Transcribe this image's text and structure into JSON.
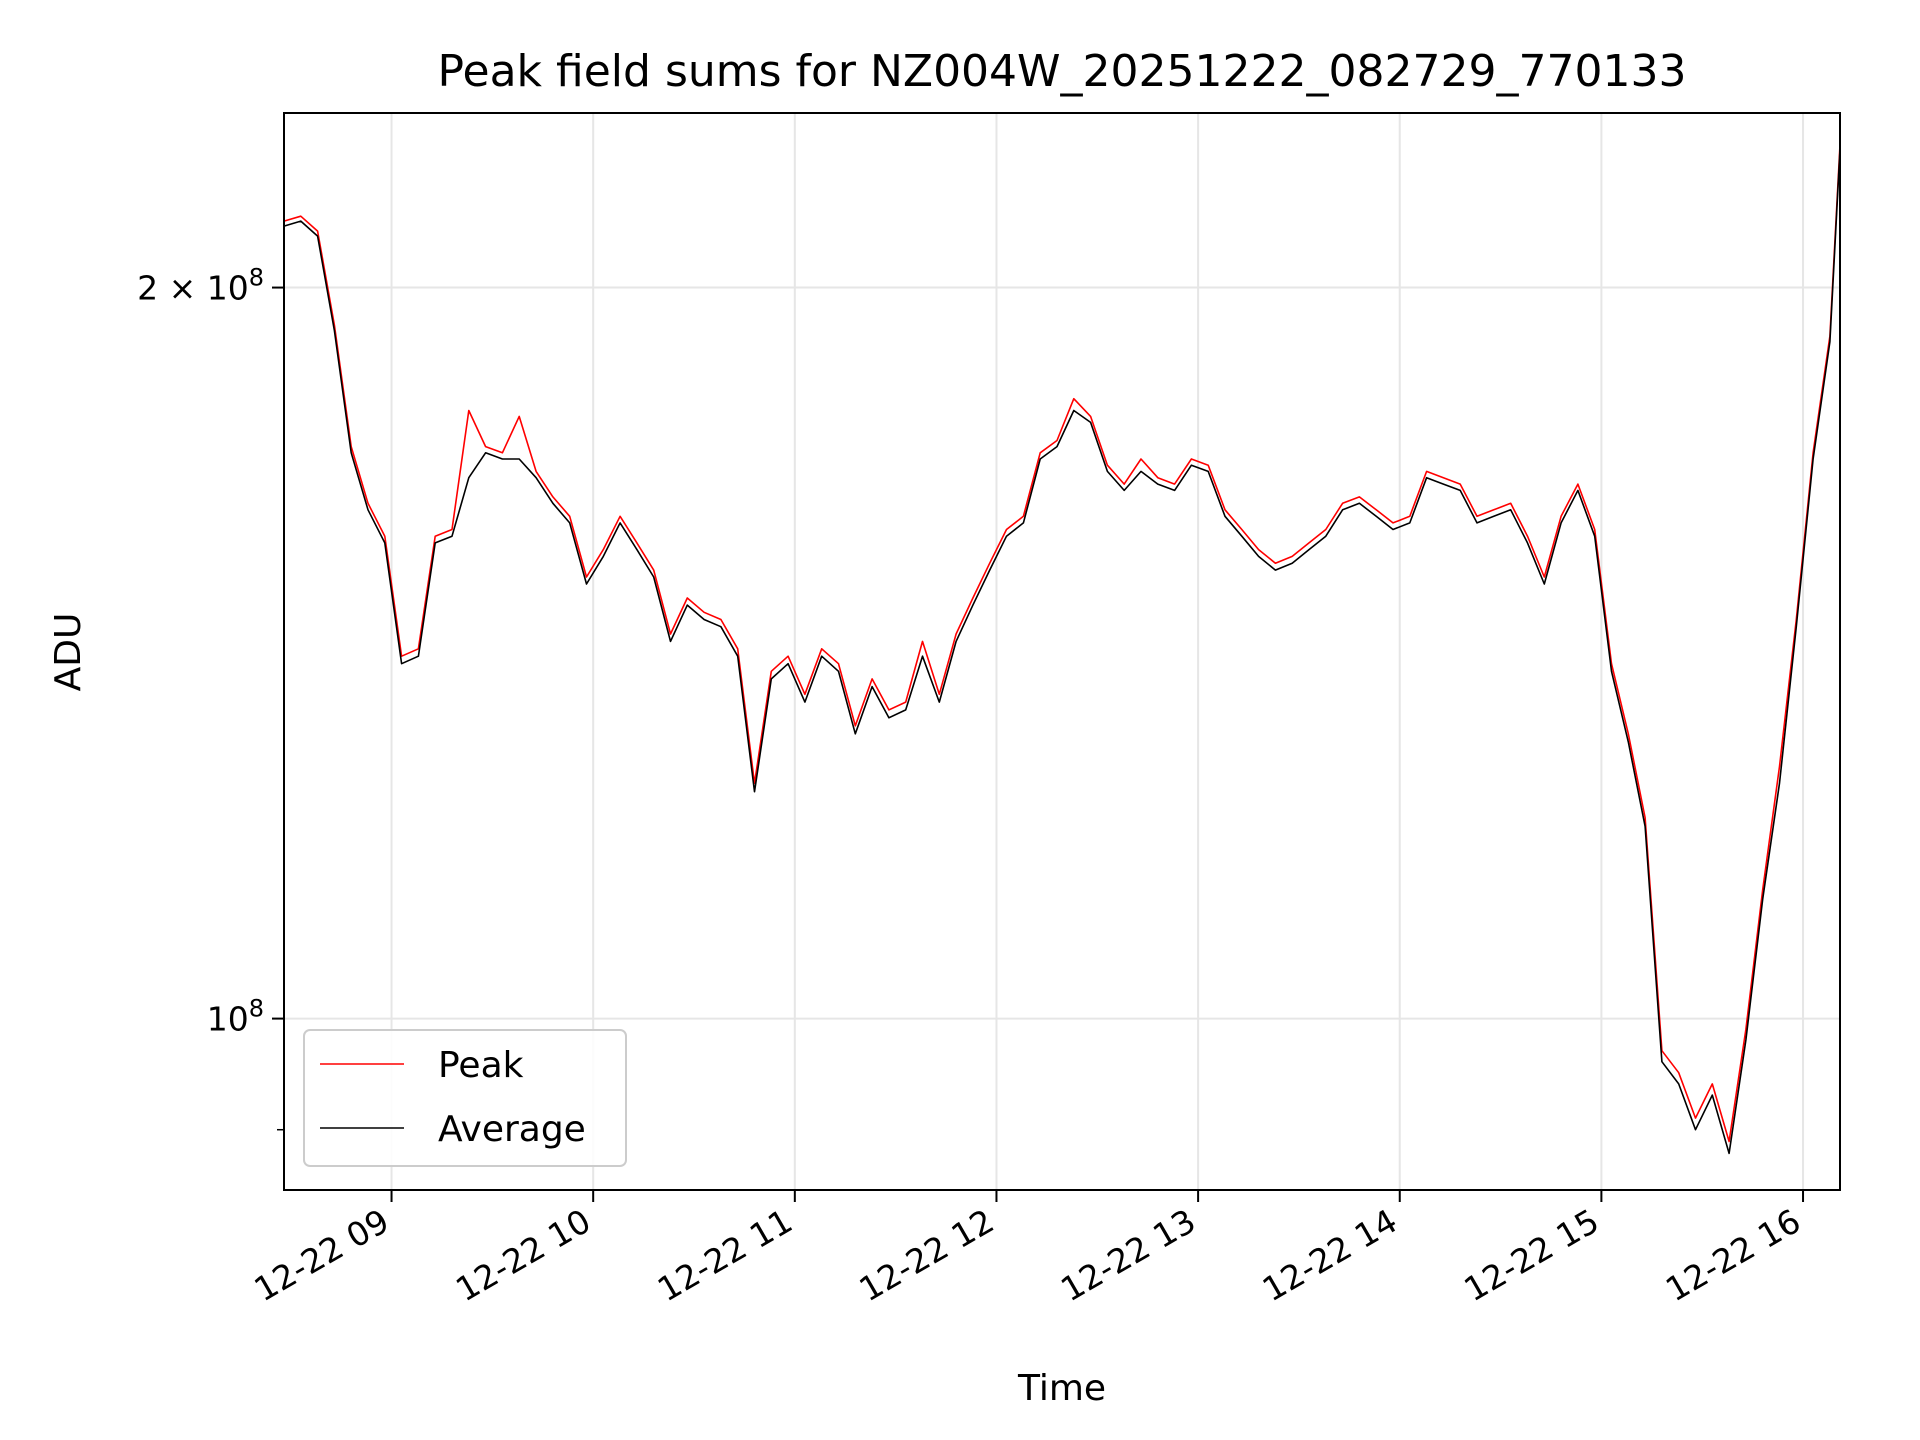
{
  "chart_data": {
    "type": "line",
    "title": "Peak field sums for NZ004W_20251222_082729_770133",
    "xlabel": "Time",
    "ylabel": "ADU",
    "y_scale": "log",
    "ylim": [
      85000000,
      236000000
    ],
    "xlim": [
      "2025-12-22 08:28",
      "2025-12-22 16:11"
    ],
    "grid": true,
    "legend_position": "lower-left",
    "x_ticks": [
      {
        "time": "2025-12-22 09:00",
        "label": "12-22 09"
      },
      {
        "time": "2025-12-22 10:00",
        "label": "12-22 10"
      },
      {
        "time": "2025-12-22 11:00",
        "label": "12-22 11"
      },
      {
        "time": "2025-12-22 12:00",
        "label": "12-22 12"
      },
      {
        "time": "2025-12-22 13:00",
        "label": "12-22 13"
      },
      {
        "time": "2025-12-22 14:00",
        "label": "12-22 14"
      },
      {
        "time": "2025-12-22 15:00",
        "label": "12-22 15"
      },
      {
        "time": "2025-12-22 16:00",
        "label": "12-22 16"
      }
    ],
    "y_ticks": [
      {
        "value": 100000000,
        "base": "10",
        "exp": "8",
        "mult": ""
      },
      {
        "value": 200000000,
        "base": "10",
        "exp": "8",
        "mult": "2 × "
      }
    ],
    "series": [
      {
        "name": "Peak",
        "color": "#ff0000"
      },
      {
        "name": "Average",
        "color": "#000000"
      }
    ],
    "x": [
      "08:28",
      "08:33",
      "08:38",
      "08:43",
      "08:48",
      "08:53",
      "08:58",
      "09:03",
      "09:08",
      "09:13",
      "09:18",
      "09:23",
      "09:28",
      "09:33",
      "09:38",
      "09:43",
      "09:48",
      "09:53",
      "09:58",
      "10:03",
      "10:08",
      "10:13",
      "10:18",
      "10:23",
      "10:28",
      "10:33",
      "10:38",
      "10:43",
      "10:48",
      "10:53",
      "10:58",
      "11:03",
      "11:08",
      "11:13",
      "11:18",
      "11:23",
      "11:28",
      "11:33",
      "11:38",
      "11:43",
      "11:48",
      "11:53",
      "11:58",
      "12:03",
      "12:08",
      "12:13",
      "12:18",
      "12:23",
      "12:28",
      "12:33",
      "12:38",
      "12:43",
      "12:48",
      "12:53",
      "12:58",
      "13:03",
      "13:08",
      "13:13",
      "13:18",
      "13:23",
      "13:28",
      "13:33",
      "13:38",
      "13:43",
      "13:48",
      "13:53",
      "13:58",
      "14:03",
      "14:08",
      "14:13",
      "14:18",
      "14:23",
      "14:28",
      "14:33",
      "14:38",
      "14:43",
      "14:48",
      "14:53",
      "14:58",
      "15:03",
      "15:08",
      "15:13",
      "15:18",
      "15:23",
      "15:28",
      "15:33",
      "15:38",
      "15:43",
      "15:48",
      "15:53",
      "15:58",
      "16:03",
      "16:08",
      "16:11"
    ],
    "avg_millions": [
      212,
      213,
      210,
      192,
      171,
      162,
      157,
      140,
      141,
      157,
      158,
      167,
      171,
      170,
      170,
      167,
      163,
      160,
      151,
      155,
      160,
      156,
      152,
      143,
      148,
      146,
      145,
      141,
      124,
      138,
      140,
      135,
      141,
      139,
      131,
      137,
      133,
      134,
      141,
      135,
      143,
      148,
      153,
      158,
      160,
      170,
      172,
      178,
      176,
      168,
      165,
      168,
      166,
      165,
      169,
      168,
      161,
      158,
      155,
      153,
      154,
      156,
      158,
      162,
      163,
      161,
      159,
      160,
      167,
      166,
      165,
      160,
      161,
      162,
      157,
      151,
      160,
      165,
      158,
      139,
      130,
      120,
      96,
      94,
      90,
      93,
      88,
      98,
      112,
      125,
      145,
      170,
      190,
      228
    ],
    "peak_millions": [
      213,
      214,
      211,
      193,
      172,
      163,
      158,
      141,
      142,
      158,
      159,
      178,
      172,
      171,
      177,
      168,
      164,
      161,
      152,
      156,
      161,
      157,
      153,
      144,
      149,
      147,
      146,
      142,
      125,
      139,
      141,
      136,
      142,
      140,
      132,
      138,
      134,
      135,
      143,
      136,
      144,
      149,
      154,
      159,
      161,
      171,
      173,
      180,
      177,
      169,
      166,
      170,
      167,
      166,
      170,
      169,
      162,
      159,
      156,
      154,
      155,
      157,
      159,
      163,
      164,
      162,
      160,
      161,
      168,
      167,
      166,
      161,
      162,
      163,
      158,
      152,
      161,
      166,
      159,
      140,
      131,
      121,
      97,
      95,
      91,
      94,
      89,
      99,
      113,
      127,
      146,
      171,
      191,
      229
    ]
  }
}
